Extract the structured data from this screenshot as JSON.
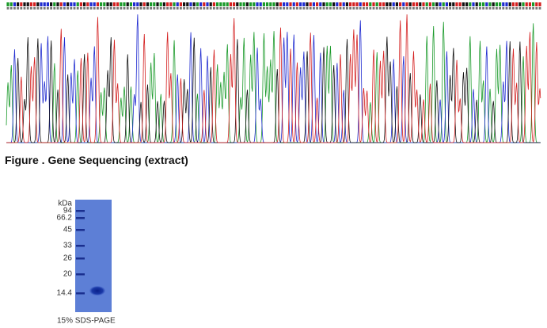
{
  "caption": "Figure . Gene Sequencing (extract)",
  "gel": {
    "unit": "kDa",
    "markers": [
      "94",
      "66.2",
      "45",
      "33",
      "26",
      "20",
      "14.4"
    ],
    "label": "15% SDS-PAGE"
  }
}
